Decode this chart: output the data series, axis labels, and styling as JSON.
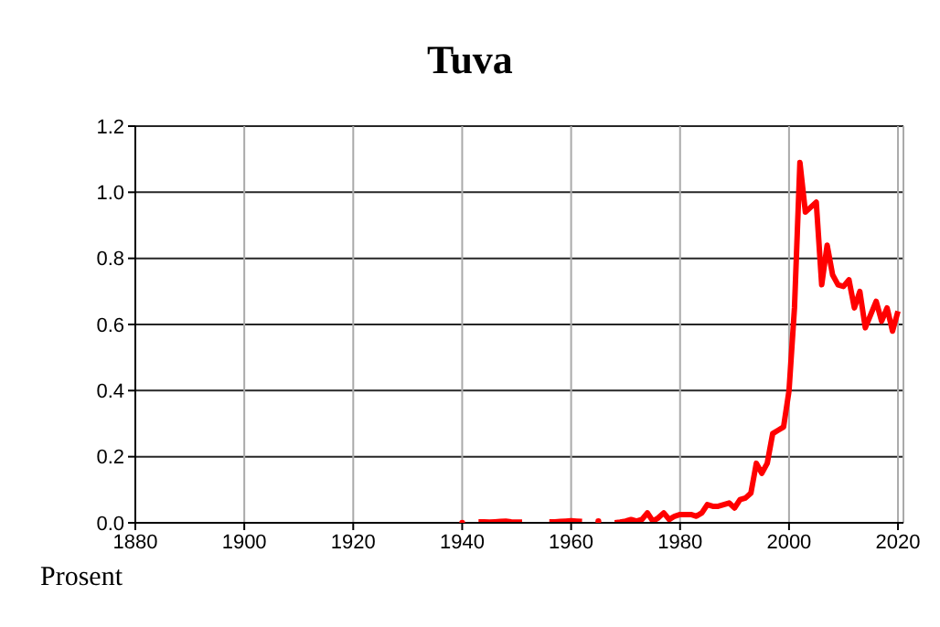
{
  "chart_data": {
    "type": "line",
    "title": "Tuva",
    "ylabel": "Prosent",
    "x": [
      1940,
      1941,
      1942,
      1943,
      1944,
      1945,
      1946,
      1947,
      1948,
      1949,
      1950,
      1951,
      1952,
      1953,
      1954,
      1955,
      1956,
      1957,
      1958,
      1959,
      1960,
      1961,
      1962,
      1963,
      1964,
      1965,
      1966,
      1967,
      1968,
      1969,
      1970,
      1971,
      1972,
      1973,
      1974,
      1975,
      1976,
      1977,
      1978,
      1979,
      1980,
      1981,
      1982,
      1983,
      1984,
      1985,
      1986,
      1987,
      1988,
      1989,
      1990,
      1991,
      1992,
      1993,
      1994,
      1995,
      1996,
      1997,
      1998,
      1999,
      2000,
      2001,
      2002,
      2003,
      2004,
      2005,
      2006,
      2007,
      2008,
      2009,
      2010,
      2011,
      2012,
      2013,
      2014,
      2015,
      2016,
      2017,
      2018,
      2019,
      2020
    ],
    "series": [
      {
        "color": "#ff0000",
        "values": [
          0,
          null,
          null,
          0.003,
          0.003,
          0.002,
          0.003,
          0.004,
          0.005,
          0.003,
          0.002,
          0.002,
          null,
          null,
          null,
          null,
          0.003,
          0.003,
          0.004,
          0.005,
          0.006,
          0.005,
          0.004,
          null,
          null,
          0.005,
          null,
          null,
          0,
          0.002,
          0.005,
          0.01,
          0.005,
          0.01,
          0.03,
          0.005,
          0.015,
          0.03,
          0.01,
          0.02,
          0.025,
          0.025,
          0.025,
          0.02,
          0.03,
          0.055,
          0.05,
          0.05,
          0.055,
          0.06,
          0.045,
          0.07,
          0.075,
          0.09,
          0.18,
          0.15,
          0.18,
          0.27,
          0.28,
          0.29,
          0.4,
          0.65,
          1.09,
          0.94,
          0.955,
          0.97,
          0.72,
          0.84,
          0.75,
          0.72,
          0.715,
          0.735,
          0.65,
          0.7,
          0.59,
          0.63,
          0.67,
          0.61,
          0.65,
          0.58,
          0.64
        ]
      }
    ],
    "xlim": [
      1880,
      2021
    ],
    "xticks": [
      1880,
      1900,
      1920,
      1940,
      1960,
      1980,
      2000,
      2020
    ],
    "ylim": [
      0,
      1.2
    ],
    "yticks": [
      {
        "value": 0,
        "label": "0.0"
      },
      {
        "value": 0.2,
        "label": "0.2"
      },
      {
        "value": 0.4,
        "label": "0.4"
      },
      {
        "value": 0.6,
        "label": "0.6"
      },
      {
        "value": 0.8,
        "label": "0.8"
      },
      {
        "value": 1,
        "label": "1.0"
      },
      {
        "value": 1.2,
        "label": "1.2"
      }
    ],
    "grid": true,
    "legend": false,
    "marker": "none",
    "line_style": "solid"
  }
}
